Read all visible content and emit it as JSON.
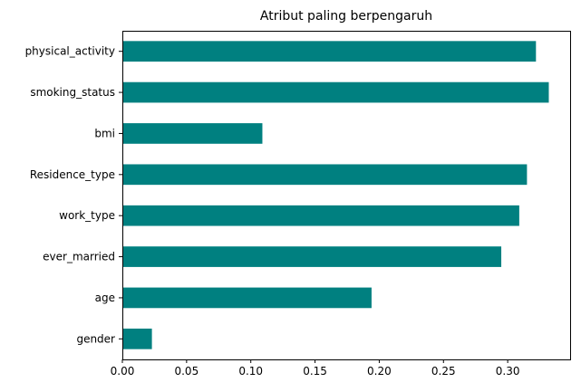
{
  "chart_data": {
    "type": "bar",
    "orientation": "horizontal",
    "title": "Atribut paling berpengaruh",
    "xlabel": "",
    "ylabel": "",
    "categories": [
      "gender",
      "age",
      "ever_married",
      "work_type",
      "Residence_type",
      "bmi",
      "smoking_status",
      "physical_activity"
    ],
    "values": [
      0.023,
      0.194,
      0.295,
      0.309,
      0.315,
      0.109,
      0.332,
      0.322
    ],
    "xlim": [
      0,
      0.3486
    ],
    "xticks": [
      "0.00",
      "0.05",
      "0.10",
      "0.15",
      "0.20",
      "0.25",
      "0.30"
    ],
    "grid": false,
    "legend": "none",
    "bar_color": "#008080"
  }
}
